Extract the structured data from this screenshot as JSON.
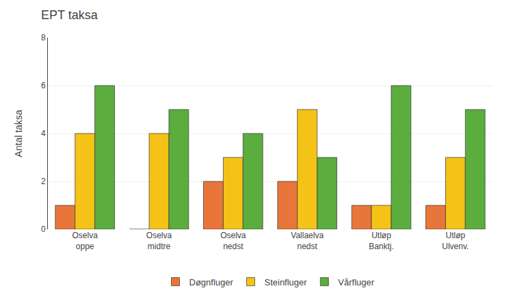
{
  "chart_data": {
    "type": "bar",
    "title": "EPT taksa",
    "ylabel": "Antal taksa",
    "categories": [
      "Oselva\noppe",
      "Oselva\nmidtre",
      "Oselva\nnedst",
      "Vallaelva\nnedst",
      "Utløp\nBanktj.",
      "Utløp\nUlvenv."
    ],
    "series": [
      {
        "name": "Døgnfluger",
        "color": "#E8763A",
        "values": [
          1,
          0,
          2,
          2,
          1,
          1
        ]
      },
      {
        "name": "Steinfluger",
        "color": "#F5C218",
        "values": [
          4,
          4,
          3,
          5,
          1,
          3
        ]
      },
      {
        "name": "Vårfluger",
        "color": "#5BAD3E",
        "values": [
          6,
          5,
          4,
          3,
          6,
          5
        ]
      }
    ],
    "ylim": [
      0,
      8
    ],
    "yticks": [
      0,
      2,
      4,
      6,
      8
    ],
    "grid": true,
    "legend": "bottom"
  }
}
